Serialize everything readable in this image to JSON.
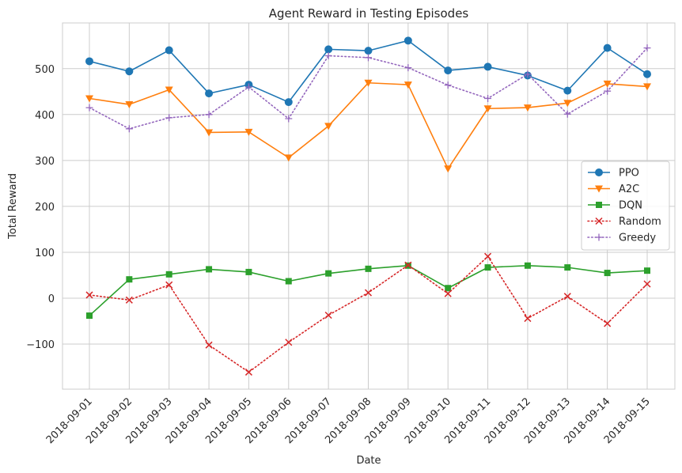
{
  "chart_data": {
    "type": "line",
    "title": "Agent Reward in Testing Episodes",
    "xlabel": "Date",
    "ylabel": "Total Reward",
    "ylim": [
      -200,
      600
    ],
    "yticks": [
      -100,
      0,
      100,
      200,
      300,
      400,
      500
    ],
    "ytick_labels": [
      "−100",
      "0",
      "100",
      "200",
      "300",
      "400",
      "500"
    ],
    "grid": true,
    "legend_position": "center-right",
    "categories": [
      "2018-09-01",
      "2018-09-02",
      "2018-09-03",
      "2018-09-04",
      "2018-09-05",
      "2018-09-06",
      "2018-09-07",
      "2018-09-08",
      "2018-09-09",
      "2018-09-10",
      "2018-09-11",
      "2018-09-12",
      "2018-09-13",
      "2018-09-14",
      "2018-09-15"
    ],
    "series": [
      {
        "name": "PPO",
        "color": "#1f77b4",
        "marker": "circle",
        "linestyle": "solid",
        "values": [
          516,
          494,
          540,
          446,
          465,
          427,
          542,
          539,
          561,
          496,
          504,
          485,
          452,
          545,
          488
        ]
      },
      {
        "name": "A2C",
        "color": "#ff7f0e",
        "marker": "triangle-down",
        "linestyle": "solid",
        "values": [
          435,
          422,
          454,
          361,
          362,
          306,
          375,
          469,
          465,
          282,
          413,
          415,
          425,
          467,
          461
        ]
      },
      {
        "name": "DQN",
        "color": "#2ca02c",
        "marker": "square",
        "linestyle": "solid",
        "values": [
          -38,
          41,
          52,
          63,
          57,
          37,
          54,
          64,
          71,
          22,
          67,
          71,
          67,
          55,
          60
        ]
      },
      {
        "name": "Random",
        "color": "#d62728",
        "marker": "x",
        "linestyle": "dotted",
        "values": [
          7,
          -4,
          29,
          -102,
          -161,
          -96,
          -37,
          12,
          72,
          10,
          91,
          -44,
          4,
          -55,
          31
        ]
      },
      {
        "name": "Greedy",
        "color": "#9467bd",
        "marker": "plus",
        "linestyle": "dotted",
        "values": [
          415,
          369,
          393,
          400,
          460,
          391,
          528,
          524,
          502,
          464,
          435,
          488,
          401,
          451,
          545
        ]
      }
    ]
  }
}
